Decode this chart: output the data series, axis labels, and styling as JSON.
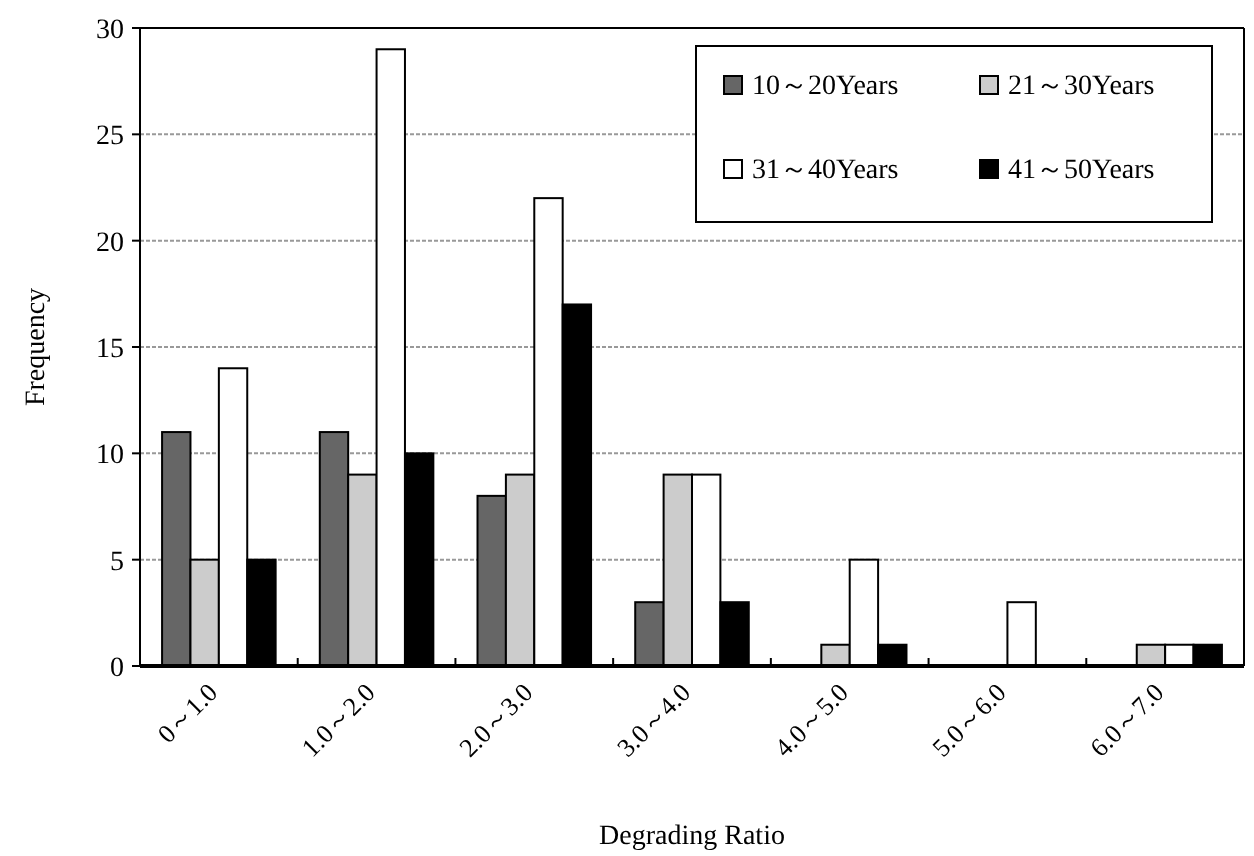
{
  "chart_data": {
    "type": "bar",
    "xlabel": "Degrading Ratio",
    "ylabel": "Frequency",
    "categories": [
      "0～1.0",
      "1.0～2.0",
      "2.0～3.0",
      "3.0～4.0",
      "4.0～5.0",
      "5.0～6.0",
      "6.0～7.0"
    ],
    "series": [
      {
        "name": "10～20Years",
        "color": "#666666",
        "values": [
          11,
          11,
          8,
          3,
          0,
          0,
          0
        ]
      },
      {
        "name": "21～30Years",
        "color": "#cccccc",
        "values": [
          5,
          9,
          9,
          9,
          1,
          0,
          1
        ]
      },
      {
        "name": "31～40Years",
        "color": "#ffffff",
        "values": [
          14,
          29,
          22,
          9,
          5,
          3,
          1
        ]
      },
      {
        "name": "41～50Years",
        "color": "#000000",
        "values": [
          5,
          10,
          17,
          3,
          1,
          0,
          1
        ]
      }
    ],
    "ylim": [
      0,
      30
    ],
    "yticks": [
      0,
      5,
      10,
      15,
      20,
      25,
      30
    ],
    "grid": "y",
    "legend": "top right"
  }
}
